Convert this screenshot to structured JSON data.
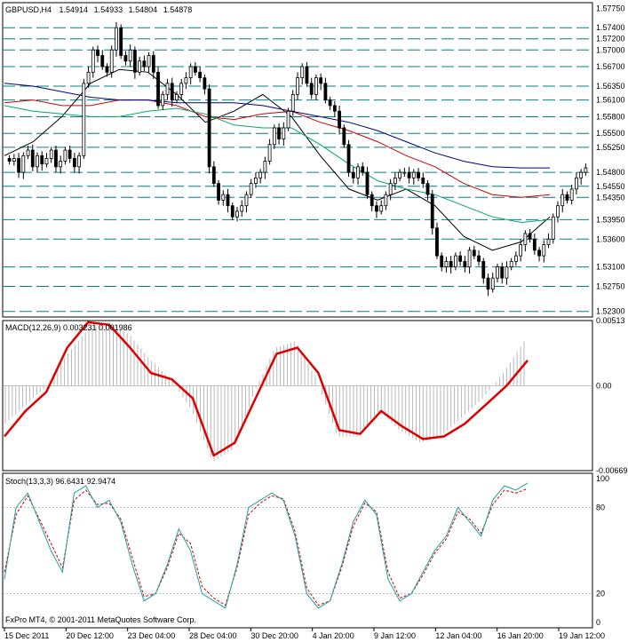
{
  "header": {
    "symbol_label": "GBPUSD,H4",
    "open": "1.54914",
    "high": "1.54933",
    "low": "1.54804",
    "close": "1.54878"
  },
  "footer": {
    "copyright": "FxPro MT4, © 2001-2011 MetaQuotes Software Corp."
  },
  "chart_data": [
    {
      "type": "candlestick",
      "panel": "price",
      "ylim": [
        1.522,
        1.5785
      ],
      "y_ticks": [
        "1.57750",
        "1.57400",
        "1.57200",
        "1.57000",
        "1.56700",
        "1.56350",
        "1.56100",
        "1.55800",
        "1.55500",
        "1.55250",
        "1.54800",
        "1.54550",
        "1.54350",
        "1.53950",
        "1.53600",
        "1.53100",
        "1.52750",
        "1.52300"
      ],
      "horizontal_levels": [
        1.574,
        1.572,
        1.57,
        1.567,
        1.5635,
        1.561,
        1.558,
        1.555,
        1.5525,
        1.548,
        1.5455,
        1.5435,
        1.5395,
        1.536,
        1.531,
        1.5275,
        1.523
      ],
      "close_path": [
        1.55,
        1.5505,
        1.548,
        1.551,
        1.552,
        1.549,
        1.551,
        1.5495,
        1.5505,
        1.552,
        1.549,
        1.55,
        1.552,
        1.5505,
        1.549,
        1.551,
        1.564,
        1.566,
        1.57,
        1.569,
        1.567,
        1.566,
        1.57,
        1.574,
        1.569,
        1.568,
        1.57,
        1.566,
        1.568,
        1.567,
        1.569,
        1.566,
        1.56,
        1.562,
        1.564,
        1.561,
        1.562,
        1.564,
        1.565,
        1.567,
        1.566,
        1.565,
        1.563,
        1.549,
        1.546,
        1.543,
        1.544,
        1.542,
        1.54,
        1.541,
        1.542,
        1.544,
        1.546,
        1.547,
        1.548,
        1.55,
        1.553,
        1.556,
        1.554,
        1.556,
        1.559,
        1.562,
        1.565,
        1.567,
        1.564,
        1.562,
        1.565,
        1.564,
        1.561,
        1.56,
        1.559,
        1.556,
        1.553,
        1.548,
        1.547,
        1.549,
        1.548,
        1.544,
        1.542,
        1.541,
        1.542,
        1.544,
        1.546,
        1.547,
        1.548,
        1.548,
        1.547,
        1.548,
        1.547,
        1.546,
        1.544,
        1.538,
        1.533,
        1.531,
        1.532,
        1.531,
        1.533,
        1.532,
        1.531,
        1.534,
        1.533,
        1.532,
        1.529,
        1.527,
        1.529,
        1.531,
        1.529,
        1.531,
        1.532,
        1.533,
        1.535,
        1.537,
        1.536,
        1.534,
        1.533,
        1.535,
        1.536,
        1.54,
        1.542,
        1.544,
        1.543,
        1.545,
        1.547,
        1.548,
        1.5488
      ],
      "moving_averages": [
        {
          "color": "#000000",
          "values": [
            1.551,
            1.5535,
            1.558,
            1.564,
            1.5665,
            1.566,
            1.562,
            1.557,
            1.559,
            1.562,
            1.558,
            1.551,
            1.545,
            1.543,
            1.545,
            1.542,
            1.5365,
            1.534,
            1.5355,
            1.54
          ]
        },
        {
          "color": "#cc0000",
          "values": [
            1.5605,
            1.561,
            1.56,
            1.56,
            1.561,
            1.561,
            1.56,
            1.558,
            1.5575,
            1.5585,
            1.559,
            1.557,
            1.5555,
            1.5535,
            1.551,
            1.549,
            1.546,
            1.544,
            1.5435,
            1.544
          ]
        },
        {
          "color": "#00aa66",
          "values": [
            1.56,
            1.559,
            1.5585,
            1.558,
            1.558,
            1.559,
            1.5595,
            1.5585,
            1.5565,
            1.556,
            1.556,
            1.553,
            1.5495,
            1.5465,
            1.545,
            1.544,
            1.542,
            1.54,
            1.539,
            1.5395
          ]
        },
        {
          "color": "#000080",
          "values": [
            1.564,
            1.5635,
            1.5625,
            1.5615,
            1.561,
            1.561,
            1.5605,
            1.5605,
            1.5605,
            1.56,
            1.559,
            1.558,
            1.557,
            1.5555,
            1.5535,
            1.5515,
            1.55,
            1.549,
            1.5488,
            1.5488
          ]
        }
      ]
    },
    {
      "type": "line",
      "panel": "macd",
      "title": "MACD(12,26,9) 0.003231 0.001986",
      "ylim": [
        -0.00669,
        0.00513
      ],
      "y_ticks": [
        "0.00513",
        "0.00",
        "-0.00669"
      ],
      "signal_line": [
        -0.004,
        -0.002,
        -0.0005,
        0.003,
        0.005,
        0.0048,
        0.003,
        0.001,
        0.0005,
        -0.001,
        -0.0055,
        -0.0045,
        -0.001,
        0.0025,
        0.003,
        0.001,
        -0.0035,
        -0.0038,
        -0.002,
        -0.0032,
        -0.0042,
        -0.004,
        -0.003,
        -0.0015,
        0.0,
        0.002
      ],
      "histogram": [
        -0.003,
        -0.0015,
        0.0,
        0.0025,
        0.0045,
        0.005,
        0.004,
        0.002,
        0.0005,
        -0.002,
        -0.006,
        -0.005,
        -0.0005,
        0.003,
        0.0035,
        0.0005,
        -0.004,
        -0.004,
        -0.002,
        -0.0035,
        -0.0045,
        -0.004,
        -0.0025,
        -0.001,
        0.001,
        0.0035
      ]
    },
    {
      "type": "line",
      "panel": "stochastic",
      "title": "Stoch(13,3,3) 96.6431 92.9474",
      "ylim": [
        0,
        100
      ],
      "y_ticks": [
        "100",
        "80",
        "20",
        "0"
      ],
      "main_line": [
        30,
        80,
        90,
        70,
        50,
        35,
        90,
        95,
        80,
        85,
        70,
        40,
        15,
        20,
        40,
        65,
        50,
        20,
        15,
        10,
        40,
        80,
        85,
        90,
        85,
        60,
        20,
        10,
        15,
        40,
        70,
        85,
        75,
        30,
        15,
        20,
        35,
        50,
        60,
        80,
        70,
        60,
        85,
        95,
        92,
        97
      ],
      "signal_line": [
        35,
        75,
        88,
        72,
        55,
        38,
        85,
        92,
        82,
        83,
        72,
        45,
        18,
        20,
        38,
        62,
        55,
        25,
        17,
        12,
        38,
        75,
        83,
        88,
        86,
        63,
        24,
        12,
        15,
        38,
        67,
        83,
        77,
        35,
        17,
        20,
        33,
        48,
        58,
        77,
        72,
        62,
        82,
        92,
        90,
        93
      ]
    }
  ],
  "x_axis": {
    "labels": [
      "15 Dec 2011",
      "20 Dec 12:00",
      "23 Dec 04:00",
      "28 Dec 04:00",
      "30 Dec 20:00",
      "4 Jan 20:00",
      "9 Jan 12:00",
      "12 Jan 04:00",
      "16 Jan 20:00",
      "19 Jan 12:00"
    ]
  },
  "colors": {
    "macd_signal": "#dd0000",
    "stoch_main": "#20a0a0",
    "stoch_signal": "#cc0000",
    "level_line": "#008080"
  }
}
